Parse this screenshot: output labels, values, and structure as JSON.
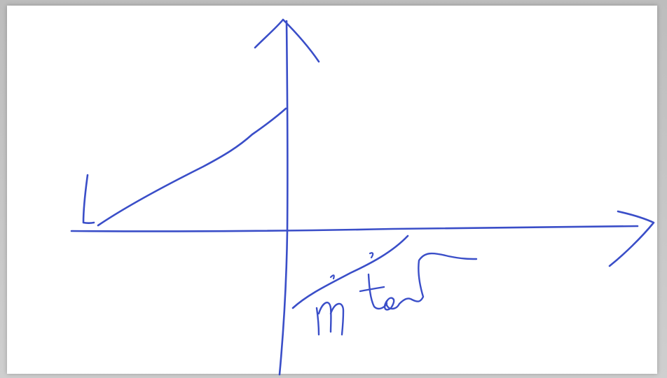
{
  "ink": {
    "color": "#3a4ec8"
  },
  "labels": {
    "handwritten": [
      "m",
      "tan"
    ]
  }
}
